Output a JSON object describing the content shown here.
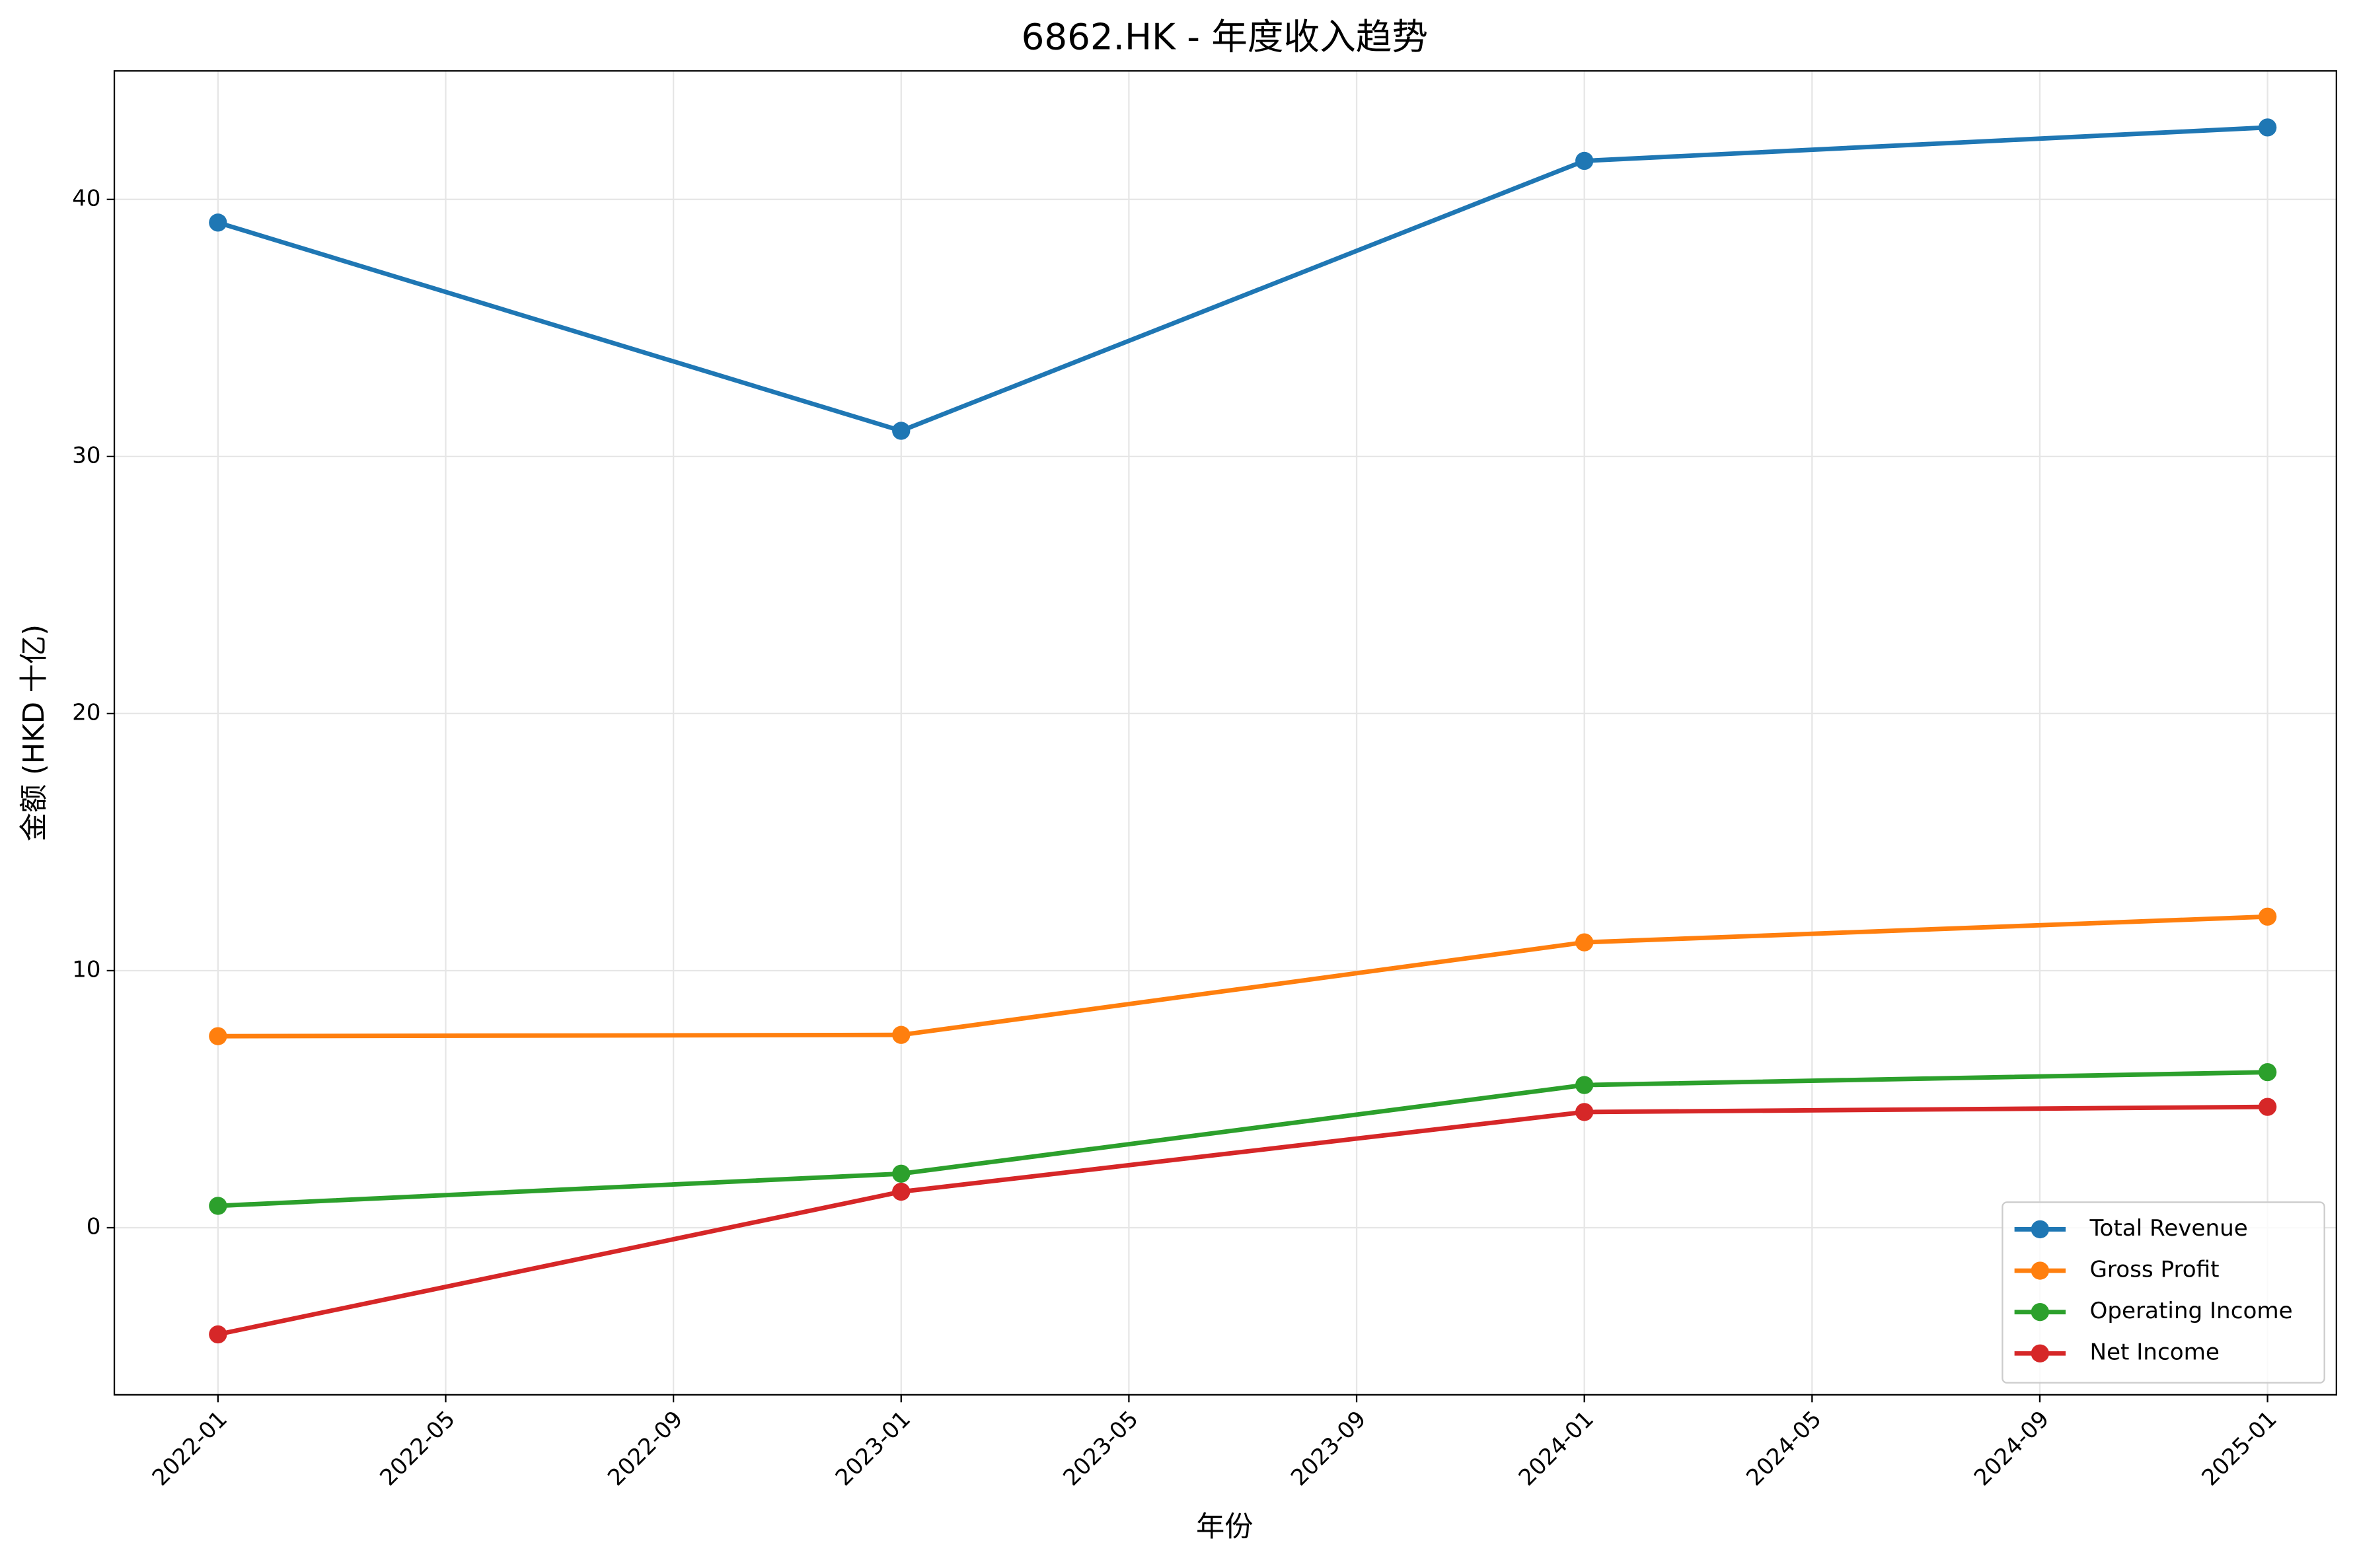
{
  "chart_data": {
    "type": "line",
    "title": "6862.HK - 年度收入趋势",
    "x_label": "年份",
    "y_label": "金额 (HKD 十亿)",
    "x": [
      "2022-01",
      "2023-01",
      "2024-01",
      "2025-01"
    ],
    "series": [
      {
        "name": "Total Revenue",
        "color": "#1f77b4",
        "values": [
          39.1,
          31.0,
          41.5,
          42.8
        ]
      },
      {
        "name": "Gross Profit",
        "color": "#ff7f0e",
        "values": [
          7.45,
          7.5,
          11.1,
          12.1
        ]
      },
      {
        "name": "Operating Income",
        "color": "#2ca02c",
        "values": [
          0.85,
          2.1,
          5.55,
          6.05
        ]
      },
      {
        "name": "Net Income",
        "color": "#d62728",
        "values": [
          -4.15,
          1.4,
          4.5,
          4.7
        ]
      }
    ],
    "xlim": [
      "2021-11",
      "2025-02"
    ],
    "xticks": [
      "2022-01",
      "2022-05",
      "2022-09",
      "2023-01",
      "2023-05",
      "2023-09",
      "2024-01",
      "2024-05",
      "2024-09",
      "2025-01"
    ],
    "ylim": [
      -6.5,
      45
    ],
    "yticks": [
      0,
      10,
      20,
      30,
      40
    ],
    "grid": true,
    "legend": "lower right"
  }
}
